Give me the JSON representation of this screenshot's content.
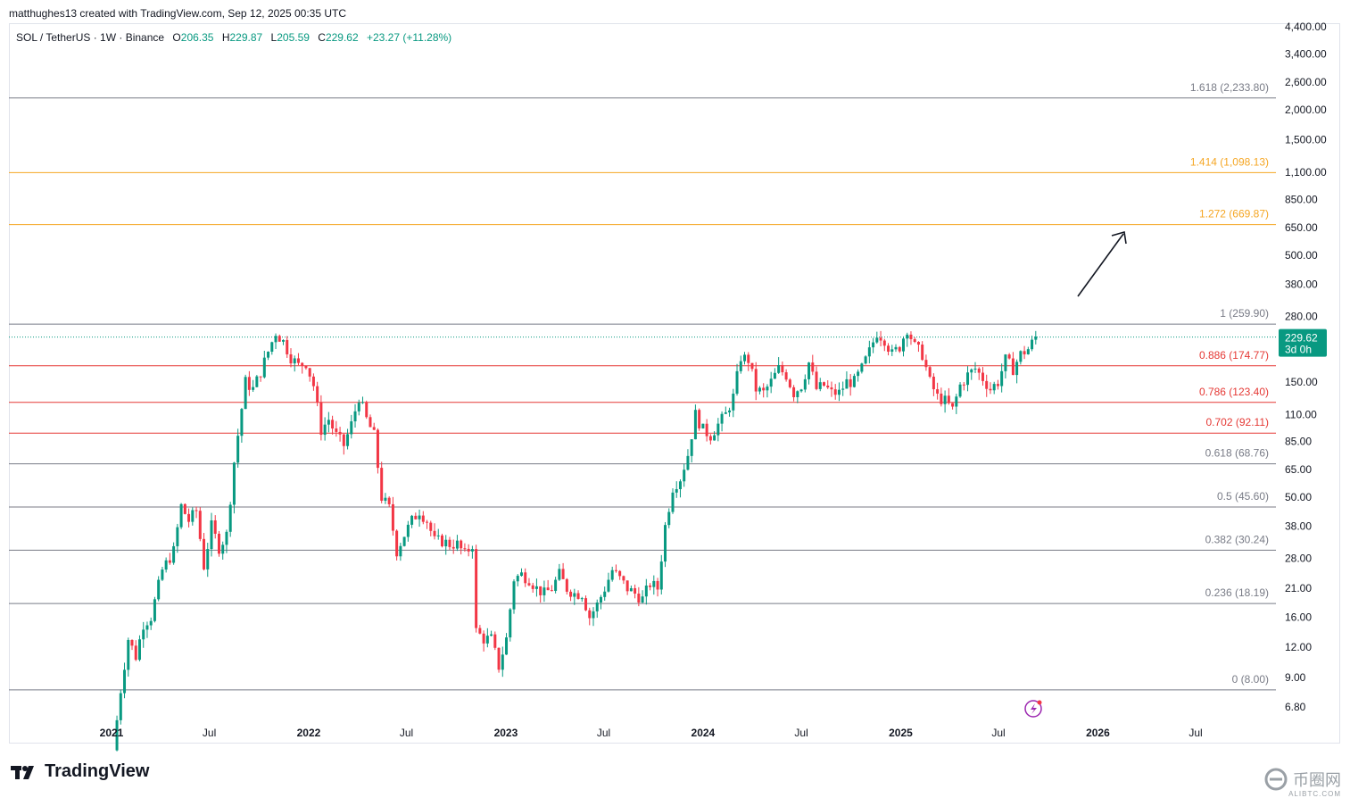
{
  "header": {
    "attribution": "matthughes13 created with TradingView.com, Sep 12, 2025 00:35 UTC"
  },
  "legend": {
    "symbol": "SOL / TetherUS · 1W · Binance",
    "o_label": "O",
    "o": "206.35",
    "h_label": "H",
    "h": "229.87",
    "l_label": "L",
    "l": "205.59",
    "c_label": "C",
    "c": "229.62",
    "change": "+23.27 (+11.28%)"
  },
  "colors": {
    "up": "#089981",
    "down": "#f23645",
    "fib_gray": "#787b86",
    "fib_red": "#e53935",
    "fib_orange": "#f5a623",
    "axis_text": "#131722"
  },
  "footer": {
    "logo_text": "TradingView",
    "watermark": "币圈网",
    "watermark_sub": "ALIBTC.COM"
  },
  "chart_data": {
    "type": "candlestick",
    "scale": "log",
    "ylim": [
      5.8,
      4400
    ],
    "y_ticks": [
      "4,400.00",
      "3,400.00",
      "2,600.00",
      "2,000.00",
      "1,500.00",
      "1,100.00",
      "850.00",
      "650.00",
      "500.00",
      "380.00",
      "280.00",
      "150.00",
      "110.00",
      "85.00",
      "65.00",
      "50.00",
      "38.00",
      "28.00",
      "21.00",
      "16.00",
      "12.00",
      "9.00",
      "6.80"
    ],
    "y_tick_values": [
      4400,
      3400,
      2600,
      2000,
      1500,
      1100,
      850,
      650,
      500,
      380,
      280,
      150,
      110,
      85,
      65,
      50,
      38,
      28,
      21,
      16,
      12,
      9,
      6.8
    ],
    "x_ticks": [
      "2021",
      "Jul",
      "2022",
      "Jul",
      "2023",
      "Jul",
      "2024",
      "Jul",
      "2025",
      "Jul",
      "2026",
      "Jul"
    ],
    "x_tick_bold": [
      true,
      false,
      true,
      false,
      true,
      false,
      true,
      false,
      true,
      false,
      true,
      false
    ],
    "x_tick_dates": [
      "2021-01-01",
      "2021-07-01",
      "2022-01-01",
      "2022-07-01",
      "2023-01-01",
      "2023-07-01",
      "2024-01-01",
      "2024-07-01",
      "2025-01-01",
      "2025-07-01",
      "2026-01-01",
      "2026-07-01"
    ],
    "last_price": {
      "value": 229.62,
      "label": "229.62",
      "countdown": "3d 0h"
    },
    "fib_levels": [
      {
        "label": "1.618 (2,233.80)",
        "value": 2233.8,
        "color": "gray"
      },
      {
        "label": "1.414 (1,098.13)",
        "value": 1098.13,
        "color": "orange"
      },
      {
        "label": "1.272 (669.87)",
        "value": 669.87,
        "color": "orange"
      },
      {
        "label": "1 (259.90)",
        "value": 259.9,
        "color": "gray"
      },
      {
        "label": "0.886 (174.77)",
        "value": 174.77,
        "color": "red"
      },
      {
        "label": "0.786 (123.40)",
        "value": 123.4,
        "color": "red"
      },
      {
        "label": "0.702 (92.11)",
        "value": 92.11,
        "color": "red"
      },
      {
        "label": "0.618 (68.76)",
        "value": 68.76,
        "color": "gray"
      },
      {
        "label": "0.5 (45.60)",
        "value": 45.6,
        "color": "gray"
      },
      {
        "label": "0.382 (30.24)",
        "value": 30.24,
        "color": "gray"
      },
      {
        "label": "0.236 (18.19)",
        "value": 18.19,
        "color": "gray"
      },
      {
        "label": "0 (8.00)",
        "value": 8.0,
        "color": "gray"
      }
    ],
    "price_path": [
      [
        "2021-01-04",
        4.5
      ],
      [
        "2021-01-18",
        8
      ],
      [
        "2021-02-01",
        13
      ],
      [
        "2021-02-15",
        11
      ],
      [
        "2021-03-01",
        15
      ],
      [
        "2021-03-15",
        16
      ],
      [
        "2021-04-05",
        25
      ],
      [
        "2021-04-26",
        30
      ],
      [
        "2021-05-10",
        46
      ],
      [
        "2021-05-24",
        40
      ],
      [
        "2021-06-07",
        44
      ],
      [
        "2021-06-21",
        26
      ],
      [
        "2021-07-05",
        38
      ],
      [
        "2021-07-19",
        31
      ],
      [
        "2021-08-02",
        35
      ],
      [
        "2021-08-16",
        70
      ],
      [
        "2021-09-06",
        150
      ],
      [
        "2021-09-20",
        140
      ],
      [
        "2021-10-04",
        165
      ],
      [
        "2021-10-18",
        200
      ],
      [
        "2021-11-01",
        240
      ],
      [
        "2021-11-15",
        220
      ],
      [
        "2021-11-29",
        190
      ],
      [
        "2021-12-13",
        175
      ],
      [
        "2021-12-27",
        180
      ],
      [
        "2022-01-10",
        145
      ],
      [
        "2022-01-24",
        95
      ],
      [
        "2022-02-07",
        105
      ],
      [
        "2022-02-21",
        90
      ],
      [
        "2022-03-07",
        82
      ],
      [
        "2022-03-21",
        100
      ],
      [
        "2022-04-04",
        130
      ],
      [
        "2022-04-18",
        105
      ],
      [
        "2022-05-02",
        90
      ],
      [
        "2022-05-16",
        50
      ],
      [
        "2022-05-30",
        45
      ],
      [
        "2022-06-13",
        30
      ],
      [
        "2022-06-27",
        35
      ],
      [
        "2022-07-11",
        40
      ],
      [
        "2022-07-25",
        44
      ],
      [
        "2022-08-08",
        40
      ],
      [
        "2022-08-22",
        33
      ],
      [
        "2022-09-05",
        33
      ],
      [
        "2022-09-19",
        32
      ],
      [
        "2022-10-03",
        32
      ],
      [
        "2022-10-17",
        29
      ],
      [
        "2022-10-31",
        32
      ],
      [
        "2022-11-07",
        14
      ],
      [
        "2022-11-21",
        13
      ],
      [
        "2022-12-05",
        13
      ],
      [
        "2022-12-19",
        10
      ],
      [
        "2023-01-02",
        13
      ],
      [
        "2023-01-16",
        23
      ],
      [
        "2023-01-30",
        24
      ],
      [
        "2023-02-13",
        23
      ],
      [
        "2023-02-27",
        21
      ],
      [
        "2023-03-13",
        20
      ],
      [
        "2023-03-27",
        21
      ],
      [
        "2023-04-10",
        24
      ],
      [
        "2023-04-24",
        21
      ],
      [
        "2023-05-08",
        20
      ],
      [
        "2023-05-22",
        20
      ],
      [
        "2023-06-05",
        16
      ],
      [
        "2023-06-19",
        18
      ],
      [
        "2023-07-03",
        21
      ],
      [
        "2023-07-17",
        25
      ],
      [
        "2023-07-31",
        23
      ],
      [
        "2023-08-14",
        21
      ],
      [
        "2023-08-28",
        20
      ],
      [
        "2023-09-11",
        19
      ],
      [
        "2023-09-25",
        22
      ],
      [
        "2023-10-09",
        21
      ],
      [
        "2023-10-23",
        38
      ],
      [
        "2023-11-06",
        55
      ],
      [
        "2023-11-20",
        60
      ],
      [
        "2023-12-04",
        75
      ],
      [
        "2023-12-18",
        110
      ],
      [
        "2024-01-01",
        95
      ],
      [
        "2024-01-15",
        90
      ],
      [
        "2024-01-29",
        100
      ],
      [
        "2024-02-12",
        110
      ],
      [
        "2024-02-26",
        130
      ],
      [
        "2024-03-11",
        190
      ],
      [
        "2024-03-25",
        185
      ],
      [
        "2024-04-08",
        140
      ],
      [
        "2024-04-22",
        135
      ],
      [
        "2024-05-06",
        150
      ],
      [
        "2024-05-20",
        170
      ],
      [
        "2024-06-03",
        160
      ],
      [
        "2024-06-17",
        135
      ],
      [
        "2024-07-01",
        145
      ],
      [
        "2024-07-15",
        180
      ],
      [
        "2024-07-29",
        140
      ],
      [
        "2024-08-12",
        145
      ],
      [
        "2024-08-26",
        135
      ],
      [
        "2024-09-09",
        135
      ],
      [
        "2024-09-23",
        150
      ],
      [
        "2024-10-07",
        150
      ],
      [
        "2024-10-21",
        170
      ],
      [
        "2024-11-04",
        200
      ],
      [
        "2024-11-18",
        240
      ],
      [
        "2024-12-02",
        225
      ],
      [
        "2024-12-16",
        195
      ],
      [
        "2024-12-30",
        210
      ],
      [
        "2025-01-13",
        250
      ],
      [
        "2025-01-27",
        210
      ],
      [
        "2025-02-10",
        195
      ],
      [
        "2025-02-24",
        150
      ],
      [
        "2025-03-10",
        130
      ],
      [
        "2025-03-24",
        125
      ],
      [
        "2025-04-07",
        115
      ],
      [
        "2025-04-21",
        145
      ],
      [
        "2025-05-05",
        160
      ],
      [
        "2025-05-19",
        170
      ],
      [
        "2025-06-02",
        155
      ],
      [
        "2025-06-16",
        140
      ],
      [
        "2025-06-30",
        150
      ],
      [
        "2025-07-14",
        185
      ],
      [
        "2025-07-28",
        170
      ],
      [
        "2025-08-11",
        195
      ],
      [
        "2025-08-25",
        205
      ],
      [
        "2025-09-08",
        229.62
      ]
    ]
  }
}
